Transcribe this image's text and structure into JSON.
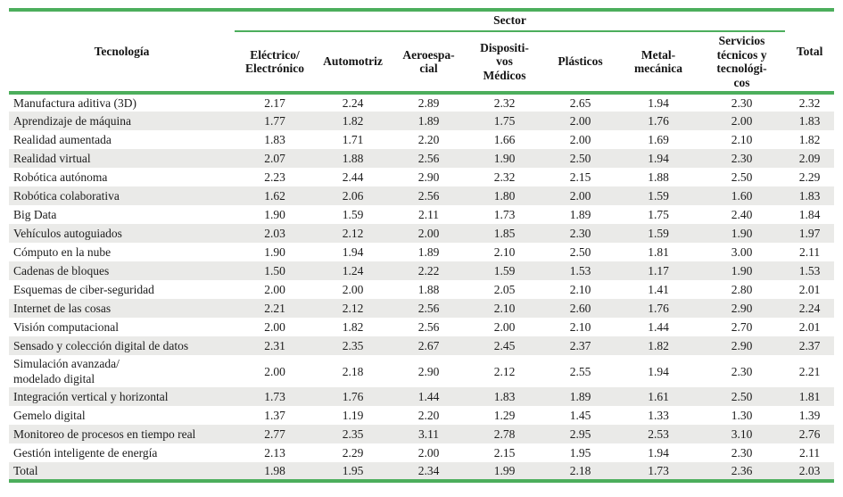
{
  "colors": {
    "accent_green": "#4cae5c",
    "row_stripe": "#eaeae8",
    "text": "#1c1c1c"
  },
  "table": {
    "tech_header": "Tecnología",
    "sector_header": "Sector",
    "total_header": "Total",
    "sector_columns": [
      "Eléctrico/\nElectrónico",
      "Automotriz",
      "Aeroespa-\ncial",
      "Dispositi-\nvos\nMédicos",
      "Plásticos",
      "Metal-\nmecánica",
      "Servicios\ntécnicos y\ntecnológi-\ncos"
    ],
    "rows": [
      {
        "tech": "Manufactura aditiva (3D)",
        "values": [
          "2.17",
          "2.24",
          "2.89",
          "2.32",
          "2.65",
          "1.94",
          "2.30",
          "2.32"
        ]
      },
      {
        "tech": "Aprendizaje de máquina",
        "values": [
          "1.77",
          "1.82",
          "1.89",
          "1.75",
          "2.00",
          "1.76",
          "2.00",
          "1.83"
        ]
      },
      {
        "tech": "Realidad aumentada",
        "values": [
          "1.83",
          "1.71",
          "2.20",
          "1.66",
          "2.00",
          "1.69",
          "2.10",
          "1.82"
        ]
      },
      {
        "tech": "Realidad virtual",
        "values": [
          "2.07",
          "1.88",
          "2.56",
          "1.90",
          "2.50",
          "1.94",
          "2.30",
          "2.09"
        ]
      },
      {
        "tech": "Robótica autónoma",
        "values": [
          "2.23",
          "2.44",
          "2.90",
          "2.32",
          "2.15",
          "1.88",
          "2.50",
          "2.29"
        ]
      },
      {
        "tech": "Robótica colaborativa",
        "values": [
          "1.62",
          "2.06",
          "2.56",
          "1.80",
          "2.00",
          "1.59",
          "1.60",
          "1.83"
        ]
      },
      {
        "tech": "Big Data",
        "values": [
          "1.90",
          "1.59",
          "2.11",
          "1.73",
          "1.89",
          "1.75",
          "2.40",
          "1.84"
        ]
      },
      {
        "tech": "Vehículos autoguiados",
        "values": [
          "2.03",
          "2.12",
          "2.00",
          "1.85",
          "2.30",
          "1.59",
          "1.90",
          "1.97"
        ]
      },
      {
        "tech": "Cómputo en la nube",
        "values": [
          "1.90",
          "1.94",
          "1.89",
          "2.10",
          "2.50",
          "1.81",
          "3.00",
          "2.11"
        ]
      },
      {
        "tech": "Cadenas de bloques",
        "values": [
          "1.50",
          "1.24",
          "2.22",
          "1.59",
          "1.53",
          "1.17",
          "1.90",
          "1.53"
        ]
      },
      {
        "tech": "Esquemas de ciber-seguridad",
        "values": [
          "2.00",
          "2.00",
          "1.88",
          "2.05",
          "2.10",
          "1.41",
          "2.80",
          "2.01"
        ]
      },
      {
        "tech": "Internet de las cosas",
        "values": [
          "2.21",
          "2.12",
          "2.56",
          "2.10",
          "2.60",
          "1.76",
          "2.90",
          "2.24"
        ]
      },
      {
        "tech": "Visión computacional",
        "values": [
          "2.00",
          "1.82",
          "2.56",
          "2.00",
          "2.10",
          "1.44",
          "2.70",
          "2.01"
        ]
      },
      {
        "tech": "Sensado y colección digital de datos",
        "values": [
          "2.31",
          "2.35",
          "2.67",
          "2.45",
          "2.37",
          "1.82",
          "2.90",
          "2.37"
        ]
      },
      {
        "tech": "Simulación avanzada/\nmodelado digital",
        "values": [
          "2.00",
          "2.18",
          "2.90",
          "2.12",
          "2.55",
          "1.94",
          "2.30",
          "2.21"
        ]
      },
      {
        "tech": "Integración vertical y horizontal",
        "values": [
          "1.73",
          "1.76",
          "1.44",
          "1.83",
          "1.89",
          "1.61",
          "2.50",
          "1.81"
        ]
      },
      {
        "tech": "Gemelo digital",
        "values": [
          "1.37",
          "1.19",
          "2.20",
          "1.29",
          "1.45",
          "1.33",
          "1.30",
          "1.39"
        ]
      },
      {
        "tech": "Monitoreo de procesos en tiempo real",
        "values": [
          "2.77",
          "2.35",
          "3.11",
          "2.78",
          "2.95",
          "2.53",
          "3.10",
          "2.76"
        ]
      },
      {
        "tech": "Gestión inteligente de energía",
        "values": [
          "2.13",
          "2.29",
          "2.00",
          "2.15",
          "1.95",
          "1.94",
          "2.30",
          "2.11"
        ]
      },
      {
        "tech": "Total",
        "values": [
          "1.98",
          "1.95",
          "2.34",
          "1.99",
          "2.18",
          "1.73",
          "2.36",
          "2.03"
        ]
      }
    ]
  }
}
